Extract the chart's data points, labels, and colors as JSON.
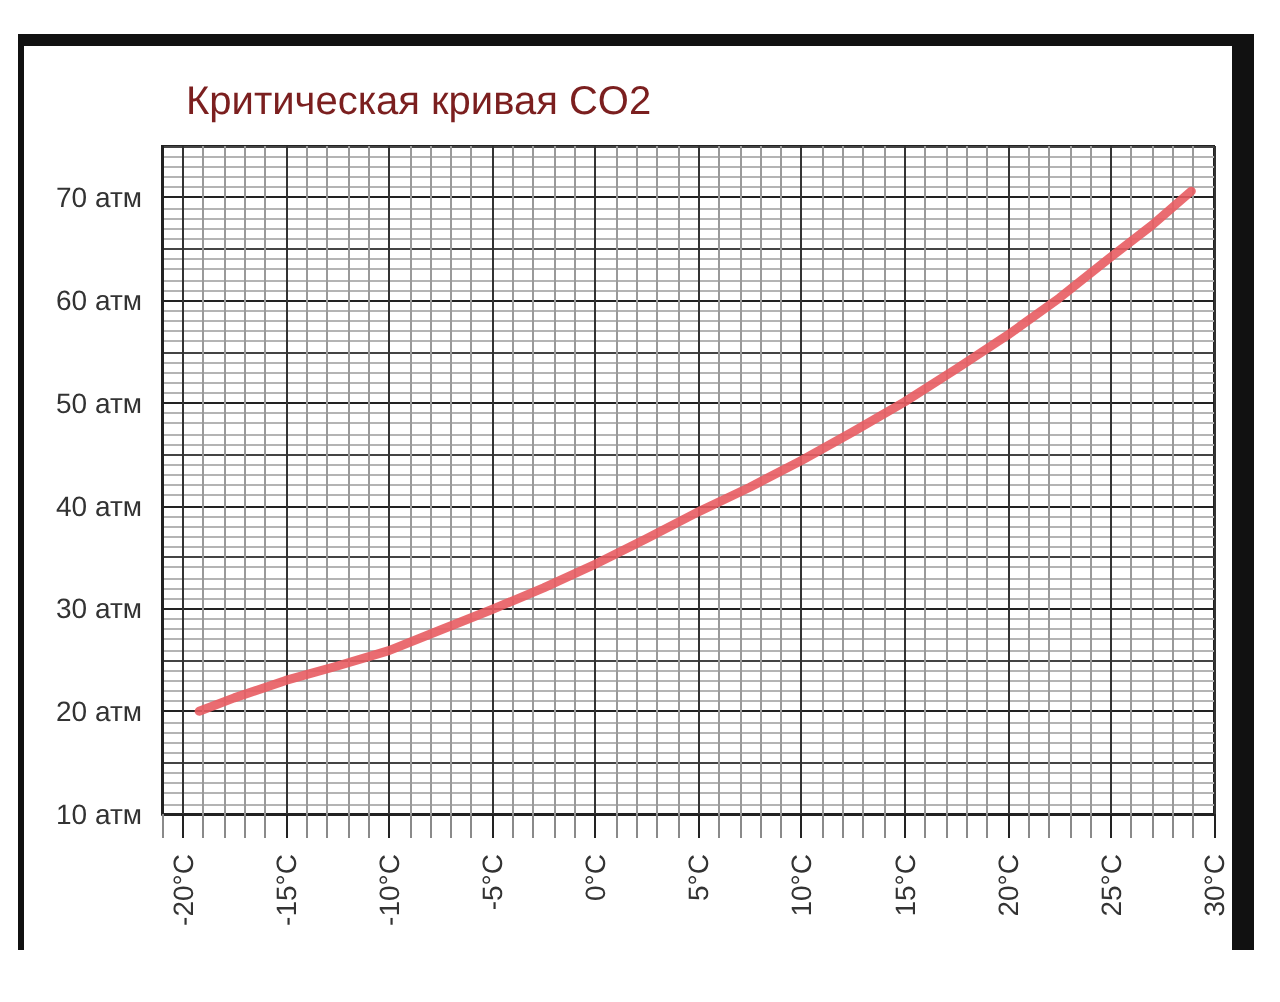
{
  "chart_data": {
    "type": "line",
    "title": "Критическая кривая CO2",
    "x": [
      -19.2,
      -17.5,
      -15,
      -12.5,
      -10,
      -7.5,
      -5,
      -2.5,
      0,
      2.5,
      5,
      7.5,
      10,
      12.5,
      15,
      17.5,
      20,
      22.5,
      25,
      27,
      28.9
    ],
    "values": [
      20.0,
      21.3,
      23.0,
      24.4,
      25.9,
      27.9,
      29.9,
      32.0,
      34.3,
      36.8,
      39.4,
      41.8,
      44.4,
      47.2,
      50.1,
      53.3,
      56.6,
      60.2,
      64.2,
      67.3,
      70.6
    ],
    "color": "#e85c62",
    "xlim": [
      -21,
      30
    ],
    "xticks": [
      {
        "value": -20,
        "label": "-20°C"
      },
      {
        "value": -15,
        "label": "-15°C"
      },
      {
        "value": -10,
        "label": "-10°C"
      },
      {
        "value": -5,
        "label": "-5°C"
      },
      {
        "value": 0,
        "label": "0°C"
      },
      {
        "value": 5,
        "label": "5°C"
      },
      {
        "value": 10,
        "label": "10°C"
      },
      {
        "value": 15,
        "label": "15°C"
      },
      {
        "value": 20,
        "label": "20°C"
      },
      {
        "value": 25,
        "label": "25°C"
      },
      {
        "value": 30,
        "label": "30°C"
      }
    ],
    "ylim": [
      10,
      75
    ],
    "yticks": [
      {
        "value": 10,
        "label": "10 атм"
      },
      {
        "value": 20,
        "label": "20 атм"
      },
      {
        "value": 30,
        "label": "30 атм"
      },
      {
        "value": 40,
        "label": "40 атм"
      },
      {
        "value": 50,
        "label": "50 атм"
      },
      {
        "value": 60,
        "label": "60 атм"
      },
      {
        "value": 70,
        "label": "70 атм"
      }
    ],
    "grid": true
  }
}
